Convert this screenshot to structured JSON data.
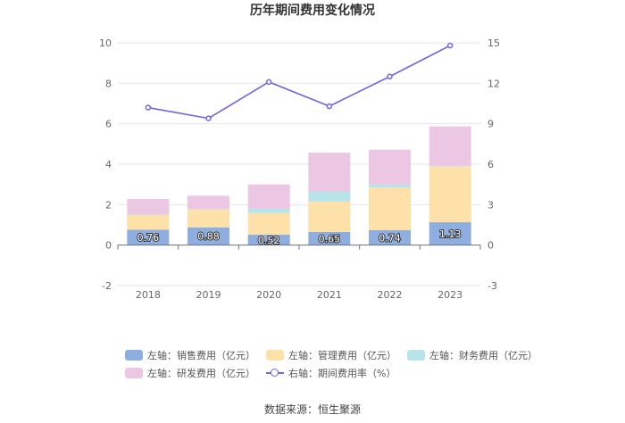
{
  "chart_data": {
    "type": "bar",
    "title": "历年期间费用变化情况",
    "categories": [
      "2018",
      "2019",
      "2020",
      "2021",
      "2022",
      "2023"
    ],
    "stacked": true,
    "left_axis": {
      "min": -2,
      "max": 10,
      "ticks": [
        -2,
        0,
        2,
        4,
        6,
        8,
        10
      ]
    },
    "right_axis": {
      "min": -3,
      "max": 15,
      "ticks": [
        -3,
        0,
        3,
        6,
        9,
        12,
        15
      ]
    },
    "series": [
      {
        "name": "左轴：销售费用（亿元）",
        "axis": "left",
        "color": "#8eaedf",
        "values": [
          0.76,
          0.88,
          0.52,
          0.65,
          0.74,
          1.13
        ],
        "labels": [
          "0.76",
          "0.88",
          "0.52",
          "0.65",
          "0.74",
          "1.13"
        ]
      },
      {
        "name": "左轴：管理费用（亿元）",
        "axis": "left",
        "color": "#fde1a8",
        "values": [
          0.73,
          0.88,
          1.06,
          1.5,
          2.1,
          2.75
        ]
      },
      {
        "name": "左轴：财务费用（亿元）",
        "axis": "left",
        "color": "#b7e4e9",
        "values": [
          0.02,
          0.02,
          0.22,
          0.5,
          0.15,
          0.02
        ]
      },
      {
        "name": "左轴：研发费用（亿元）",
        "axis": "left",
        "color": "#ecc7e3",
        "values": [
          0.77,
          0.66,
          1.2,
          1.92,
          1.73,
          1.97
        ]
      },
      {
        "name": "右轴：期间费用率（%）",
        "axis": "right",
        "type": "line",
        "color": "#7266e0",
        "values": [
          10.2,
          9.4,
          12.1,
          10.3,
          12.5,
          14.8
        ]
      }
    ]
  },
  "source": "数据来源：恒生聚源"
}
